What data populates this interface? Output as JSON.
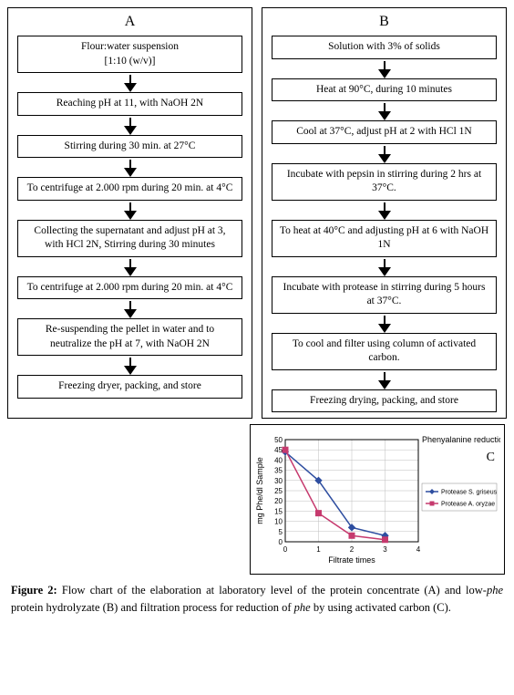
{
  "colA": {
    "label": "A",
    "steps": [
      "Flour:water suspension\n[1:10 (w/v)]",
      "Reaching pH at 11, with NaOH 2N",
      "Stirring during 30 min. at 27°C",
      "To centrifuge at 2.000 rpm during 20 min. at 4°C",
      "Collecting the supernatant and adjust pH at 3, with HCl 2N, Stirring during 30 minutes",
      "To centrifuge at 2.000 rpm during 20 min. at 4°C",
      "Re-suspending the pellet in water and to neutralize the pH at 7, with NaOH 2N",
      "Freezing dryer, packing, and store"
    ]
  },
  "colB": {
    "label": "B",
    "steps": [
      "Solution with 3% of solids",
      "Heat at 90°C, during 10 minutes",
      "Cool at 37°C, adjust pH at 2 with HCl 1N",
      "Incubate with pepsin in stirring during 2 hrs at 37°C.",
      "To heat at 40°C and adjusting pH at 6 with NaOH 1N",
      "Incubate with protease in stirring during 5 hours at 37°C.",
      "To cool and filter using column of activated carbon.",
      "Freezing drying, packing, and store"
    ]
  },
  "chart": {
    "type": "line",
    "panel_label": "C",
    "title": "Phenyalanine reduction",
    "xlabel": "Filtrate times",
    "ylabel": "mg Phe/dl Sample",
    "x_values": [
      0,
      1,
      2,
      3
    ],
    "xlim": [
      0,
      4
    ],
    "ylim": [
      0,
      50
    ],
    "ytick_step": 5,
    "xtick_step": 1,
    "series": [
      {
        "name": "Protease S. griseus",
        "marker": "diamond",
        "color": "#2e4ea0",
        "values": [
          44,
          30,
          7,
          3
        ]
      },
      {
        "name": "Protease A. oryzae",
        "marker": "square",
        "color": "#c63a6e",
        "values": [
          45,
          14,
          3,
          1
        ]
      }
    ],
    "grid_color": "#bdbdbd",
    "background_color": "#ffffff",
    "axis_color": "#000000",
    "tick_fontsize": 8,
    "label_fontsize": 9,
    "legend_fontsize": 7,
    "title_fontsize": 9
  },
  "caption": {
    "prefix": "Figure 2:",
    "text_parts": [
      " Flow chart of the elaboration at laboratory level of the protein concentrate (A) and low-",
      "phe",
      " protein hydrolyzate (B) and filtration process for reduction of ",
      "phe",
      " by using activated carbon (C)."
    ]
  }
}
